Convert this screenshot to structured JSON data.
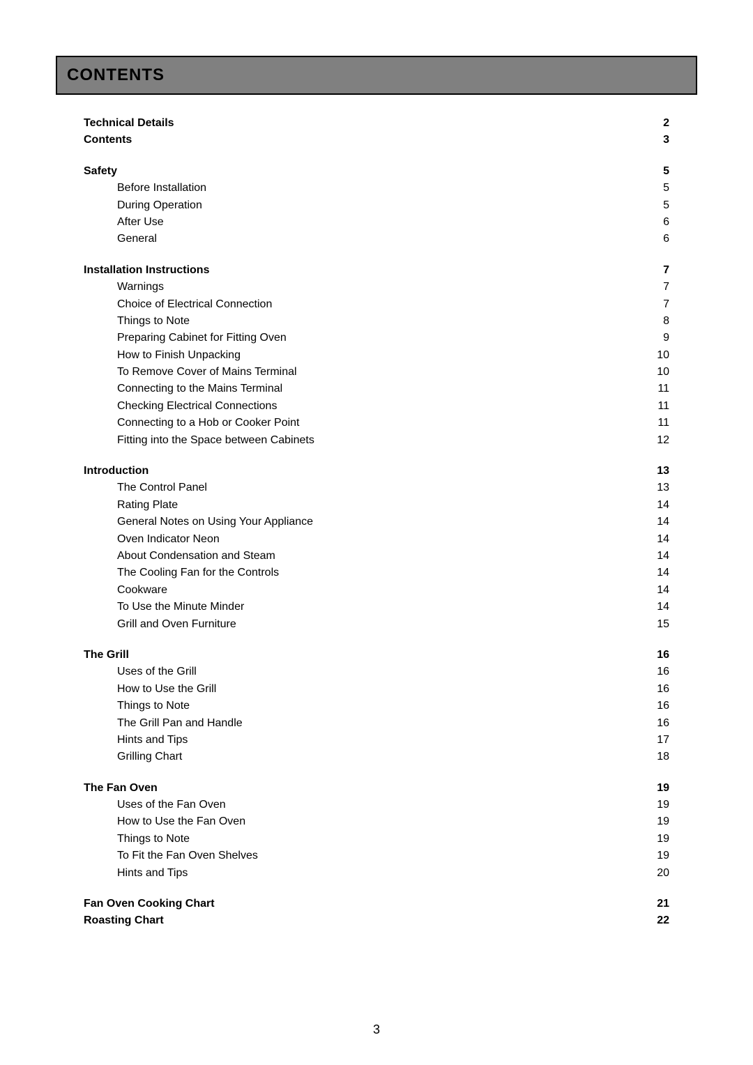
{
  "title_bar": "CONTENTS",
  "page_number": "3",
  "toc_groups": [
    [
      {
        "level": 1,
        "label": "Technical Details",
        "page": "2"
      },
      {
        "level": 1,
        "label": "Contents",
        "page": "3"
      }
    ],
    [
      {
        "level": 1,
        "label": "Safety",
        "page": "5"
      },
      {
        "level": 2,
        "label": "Before Installation",
        "page": "5"
      },
      {
        "level": 2,
        "label": "During Operation",
        "page": "5"
      },
      {
        "level": 2,
        "label": "After Use",
        "page": "6"
      },
      {
        "level": 2,
        "label": "General",
        "page": "6"
      }
    ],
    [
      {
        "level": 1,
        "label": "Installation Instructions",
        "page": "7"
      },
      {
        "level": 2,
        "label": "Warnings",
        "page": "7"
      },
      {
        "level": 2,
        "label": "Choice of Electrical Connection",
        "page": "7"
      },
      {
        "level": 2,
        "label": "Things to Note",
        "page": "8"
      },
      {
        "level": 2,
        "label": "Preparing Cabinet for Fitting Oven",
        "page": "9"
      },
      {
        "level": 2,
        "label": "How to Finish Unpacking",
        "page": "10"
      },
      {
        "level": 2,
        "label": "To Remove Cover of Mains Terminal",
        "page": "10"
      },
      {
        "level": 2,
        "label": "Connecting to the Mains Terminal",
        "page": "11"
      },
      {
        "level": 2,
        "label": "Checking Electrical Connections",
        "page": "11"
      },
      {
        "level": 2,
        "label": "Connecting to a Hob or Cooker Point",
        "page": "11"
      },
      {
        "level": 2,
        "label": "Fitting into the Space between Cabinets",
        "page": "12"
      }
    ],
    [
      {
        "level": 1,
        "label": "Introduction",
        "page": "13"
      },
      {
        "level": 2,
        "label": "The Control Panel",
        "page": "13"
      },
      {
        "level": 2,
        "label": "Rating Plate",
        "page": "14"
      },
      {
        "level": 2,
        "label": "General Notes on Using Your Appliance",
        "page": "14"
      },
      {
        "level": 2,
        "label": "Oven Indicator Neon",
        "page": "14"
      },
      {
        "level": 2,
        "label": "About Condensation and Steam",
        "page": "14"
      },
      {
        "level": 2,
        "label": "The Cooling Fan for the Controls",
        "page": "14"
      },
      {
        "level": 2,
        "label": "Cookware",
        "page": "14"
      },
      {
        "level": 2,
        "label": "To Use the Minute Minder",
        "page": "14"
      },
      {
        "level": 2,
        "label": "Grill and Oven Furniture",
        "page": "15"
      }
    ],
    [
      {
        "level": 1,
        "label": "The Grill",
        "page": "16"
      },
      {
        "level": 2,
        "label": "Uses of the Grill",
        "page": "16"
      },
      {
        "level": 2,
        "label": "How to Use the Grill",
        "page": "16"
      },
      {
        "level": 2,
        "label": "Things to Note",
        "page": "16"
      },
      {
        "level": 2,
        "label": "The Grill Pan and Handle",
        "page": "16"
      },
      {
        "level": 2,
        "label": "Hints and Tips",
        "page": "17"
      },
      {
        "level": 2,
        "label": "Grilling Chart",
        "page": "18"
      }
    ],
    [
      {
        "level": 1,
        "label": "The Fan Oven",
        "page": "19"
      },
      {
        "level": 2,
        "label": "Uses of the Fan Oven",
        "page": "19"
      },
      {
        "level": 2,
        "label": "How to Use the Fan Oven",
        "page": "19"
      },
      {
        "level": 2,
        "label": "Things to Note",
        "page": "19"
      },
      {
        "level": 2,
        "label": "To Fit the Fan Oven Shelves",
        "page": "19"
      },
      {
        "level": 2,
        "label": "Hints and Tips",
        "page": "20"
      }
    ],
    [
      {
        "level": 1,
        "label": "Fan Oven Cooking Chart",
        "page": "21"
      },
      {
        "level": 1,
        "label": "Roasting Chart",
        "page": "22"
      }
    ]
  ]
}
